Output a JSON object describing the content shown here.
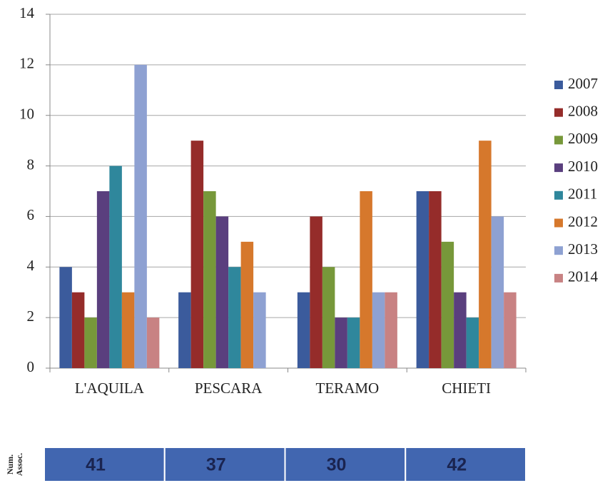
{
  "chart_data": {
    "type": "bar",
    "categories": [
      "L'AQUILA",
      "PESCARA",
      "TERAMO",
      "CHIETI"
    ],
    "series": [
      {
        "name": "2007",
        "color": "#3b5b9c",
        "values": [
          4,
          3,
          3,
          7
        ]
      },
      {
        "name": "2008",
        "color": "#952c2a",
        "values": [
          3,
          9,
          6,
          7
        ]
      },
      {
        "name": "2009",
        "color": "#77983a",
        "values": [
          2,
          7,
          4,
          5
        ]
      },
      {
        "name": "2010",
        "color": "#5a3f7e",
        "values": [
          7,
          6,
          2,
          3
        ]
      },
      {
        "name": "2011",
        "color": "#2f879c",
        "values": [
          8,
          4,
          2,
          2
        ]
      },
      {
        "name": "2012",
        "color": "#d6782c",
        "values": [
          3,
          5,
          7,
          9
        ]
      },
      {
        "name": "2013",
        "color": "#8ea1d2",
        "values": [
          12,
          3,
          3,
          6
        ]
      },
      {
        "name": "2014",
        "color": "#c88283",
        "values": [
          2,
          0,
          3,
          3
        ]
      }
    ],
    "ylim": [
      0,
      14
    ],
    "yticks": [
      0,
      2,
      4,
      6,
      8,
      10,
      12,
      14
    ],
    "grid": true,
    "legend": "right"
  },
  "table": {
    "row_label": [
      "Num.",
      "Assoc."
    ],
    "values": [
      41,
      37,
      30,
      42
    ],
    "color": "#4166b0"
  }
}
